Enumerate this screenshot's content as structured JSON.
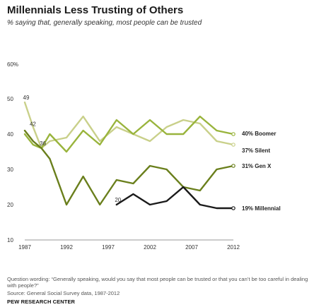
{
  "title": "Millennials Less Trusting of Others",
  "subtitle": "% saying that, generally speaking, most people can be trusted",
  "notes": "Question wording: “Generally speaking, would you say that most people can be trusted or that you can’t be too careful in dealing with people?”",
  "source": "Source: General Social Survey data, 1987-2012",
  "brand": "PEW RESEARCH CENTER",
  "chart_data": {
    "type": "line",
    "ylim": [
      10,
      60
    ],
    "xlim": [
      1987,
      2012
    ],
    "yticks": [
      10,
      20,
      30,
      40,
      50
    ],
    "ytick_labels": [
      "10",
      "20",
      "30",
      "40",
      "50"
    ],
    "ytop_label": "60%",
    "xticks": [
      1987,
      1992,
      1997,
      2002,
      2007,
      2012
    ],
    "xtick_labels": [
      "1987",
      "1992",
      "1997",
      "2002",
      "2007",
      "2012"
    ],
    "series": [
      {
        "name": "Silent",
        "end_label": "37% Silent",
        "color": "#c9d08a",
        "x": [
          1987,
          1988,
          1989,
          1990,
          1992,
          1994,
          1996,
          1998,
          2000,
          2002,
          2004,
          2006,
          2008,
          2010,
          2012
        ],
        "y": [
          49,
          42,
          36,
          38,
          39,
          45,
          38,
          42,
          40,
          38,
          42,
          44,
          43,
          38,
          37
        ]
      },
      {
        "name": "Boomer",
        "end_label": "40% Boomer",
        "color": "#99b43c",
        "x": [
          1987,
          1988,
          1989,
          1990,
          1992,
          1994,
          1996,
          1998,
          2000,
          2002,
          2004,
          2006,
          2008,
          2010,
          2012
        ],
        "y": [
          40,
          37,
          36,
          40,
          35,
          41,
          37,
          44,
          40,
          44,
          40,
          40,
          45,
          41,
          40
        ]
      },
      {
        "name": "Gen X",
        "end_label": "31% Gen X",
        "color": "#6a7f1c",
        "x": [
          1987,
          1988,
          1989,
          1990,
          1992,
          1994,
          1996,
          1998,
          2000,
          2002,
          2004,
          2006,
          2008,
          2010,
          2012
        ],
        "y": [
          41,
          38,
          36,
          33,
          20,
          28,
          20,
          27,
          26,
          31,
          30,
          25,
          24,
          30,
          31
        ]
      },
      {
        "name": "Millennial",
        "end_label": "19% Millennial",
        "color": "#1a1a1a",
        "x": [
          1998,
          2000,
          2002,
          2004,
          2006,
          2008,
          2010,
          2012
        ],
        "y": [
          20,
          23,
          20,
          21,
          25,
          20,
          19,
          19
        ]
      }
    ],
    "annotations": [
      {
        "text": "49",
        "x": 1987,
        "y": 49
      },
      {
        "text": "42",
        "x": 1987.8,
        "y": 41.5
      },
      {
        "text": "36",
        "x": 1989,
        "y": 36
      },
      {
        "text": "20",
        "x": 1998,
        "y": 20
      }
    ]
  }
}
